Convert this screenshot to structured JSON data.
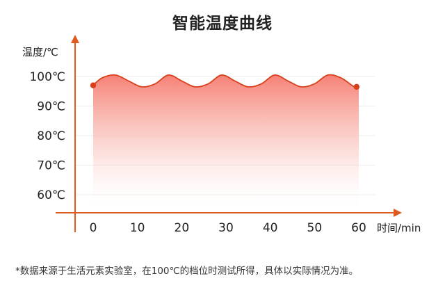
{
  "chart_data": {
    "type": "line",
    "title": "智能温度曲线",
    "ylabel": "温度/℃",
    "xlabel": "时间/min",
    "x_ticks": [
      0,
      10,
      20,
      30,
      40,
      50,
      60
    ],
    "y_ticks": [
      {
        "value": 60,
        "label": "60℃"
      },
      {
        "value": 70,
        "label": "70℃"
      },
      {
        "value": 80,
        "label": "80℃"
      },
      {
        "value": 90,
        "label": "90℃"
      },
      {
        "value": 100,
        "label": "100℃"
      }
    ],
    "series": [
      {
        "x": [
          0,
          2,
          5,
          8,
          11,
          14,
          17,
          20,
          23,
          26,
          29,
          32,
          35,
          38,
          41,
          44,
          47,
          50,
          53,
          56,
          59,
          60
        ],
        "y": [
          97,
          99.5,
          100.5,
          98.5,
          96.5,
          97.5,
          100.5,
          98.5,
          96.5,
          97.5,
          100.5,
          98.5,
          96.5,
          97.5,
          100.5,
          98.5,
          96.5,
          97.5,
          100.5,
          99.5,
          96.5,
          96.5
        ]
      }
    ],
    "markers": [
      {
        "x": 0,
        "y": 97
      },
      {
        "x": 59.5,
        "y": 96.5
      }
    ],
    "grid": true,
    "line_color": "#d9401a",
    "fill_color_top": "#f57a6e",
    "axis_color": "#e05a20"
  },
  "footnote": "*数据来源于生活元素实验室，在100℃的档位时测试所得，具体以实际情况为准。"
}
